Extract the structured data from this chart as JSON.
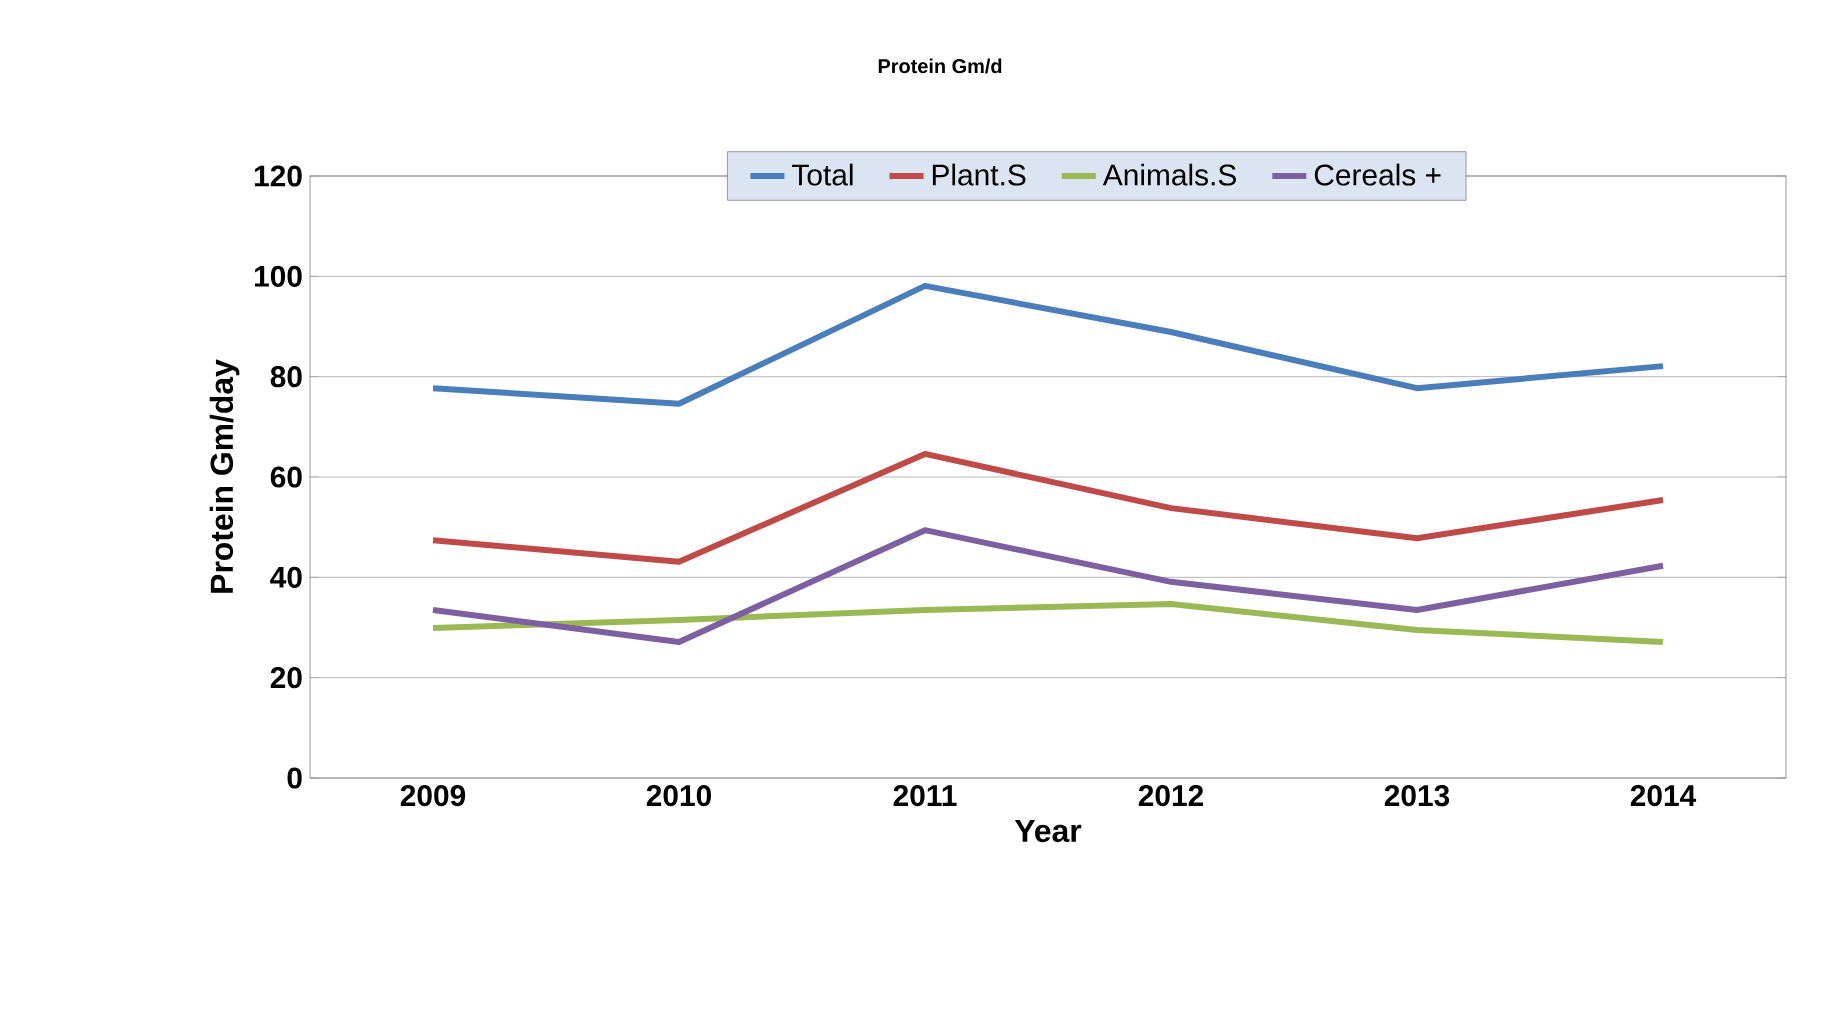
{
  "chart_data": {
    "type": "line",
    "title": "Protein Gm/d",
    "xlabel": "Year",
    "ylabel": "Protein Gm/day",
    "categories": [
      "2009",
      "2010",
      "2011",
      "2012",
      "2013",
      "2014"
    ],
    "series": [
      {
        "name": "Total",
        "color": "#4a7ebb",
        "values": [
          77.7,
          74.6,
          98.1,
          88.9,
          77.7,
          82.1
        ]
      },
      {
        "name": "Plant.S",
        "color": "#be4b48",
        "values": [
          47.4,
          43.1,
          64.6,
          53.8,
          47.8,
          55.4
        ]
      },
      {
        "name": "Animals.S",
        "color": "#98b954",
        "values": [
          29.9,
          31.5,
          33.5,
          34.7,
          29.5,
          27.1
        ]
      },
      {
        "name": "Cereals +",
        "color": "#7d60a0",
        "values": [
          33.5,
          27.1,
          49.4,
          39.1,
          33.5,
          42.3
        ]
      }
    ],
    "ylim": [
      0,
      120
    ],
    "yticks": [
      0,
      20,
      40,
      60,
      80,
      100,
      120
    ],
    "grid": "y",
    "legend": "top",
    "marker": "none",
    "line_style": "solid"
  }
}
